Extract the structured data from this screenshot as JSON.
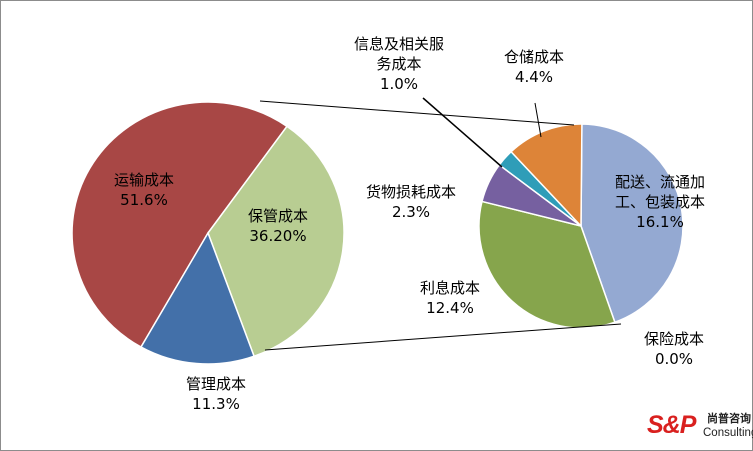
{
  "chart_data": {
    "type": "pie",
    "primary": {
      "slices": [
        {
          "label": "运输成本",
          "value": 51.6,
          "display": "51.6%",
          "color": "#a84745"
        },
        {
          "label": "保管成本",
          "value": 36.2,
          "display": "36.20%",
          "color": "#b8cd92"
        },
        {
          "label": "管理成本",
          "value": 11.3,
          "display": "11.3%",
          "color": "#4370a9"
        }
      ]
    },
    "secondary": {
      "slices": [
        {
          "label": "配送、流通加工、包装成本",
          "value": 16.1,
          "display": "16.1%",
          "color": "#94a9d2"
        },
        {
          "label": "保险成本",
          "value": 0.0,
          "display": "0.0%",
          "color": "#4f81bd"
        },
        {
          "label": "利息成本",
          "value": 12.4,
          "display": "12.4%",
          "color": "#86a54c"
        },
        {
          "label": "货物损耗成本",
          "value": 2.3,
          "display": "2.3%",
          "color": "#7660a0"
        },
        {
          "label": "信息及相关服务成本",
          "value": 1.0,
          "display": "1.0%",
          "color": "#2f9db8"
        },
        {
          "label": "仓储成本",
          "value": 4.4,
          "display": "4.4%",
          "color": "#dd8438"
        }
      ]
    },
    "connector_color": "#000000"
  },
  "logo": {
    "mark": "S&P",
    "cn": "尚普咨询",
    "en": "Consulting"
  }
}
